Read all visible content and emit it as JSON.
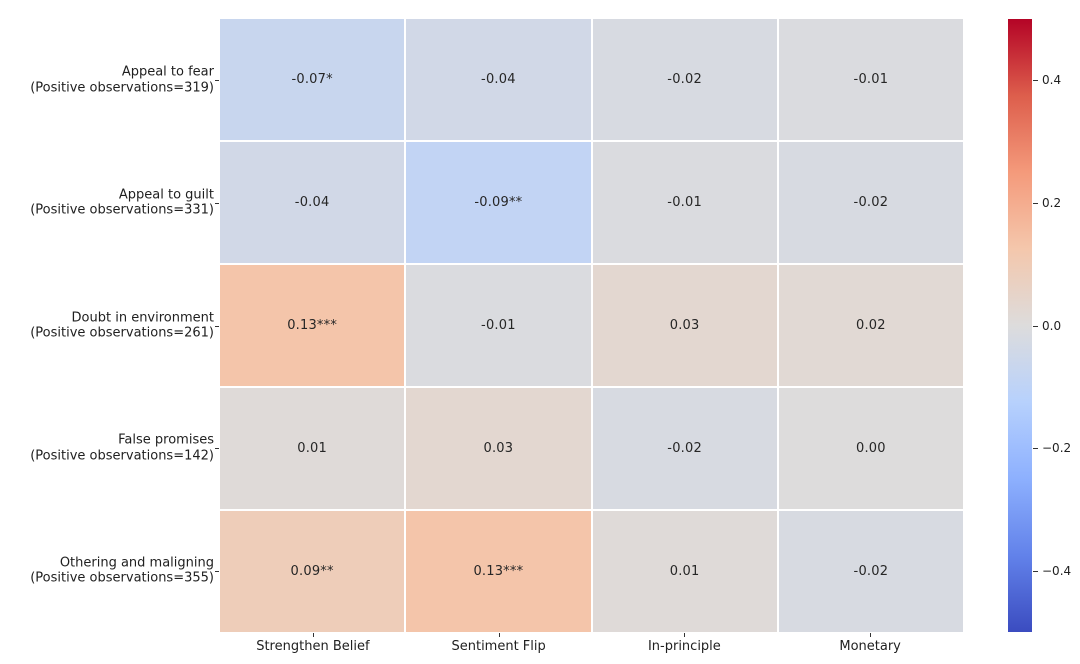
{
  "figure": {
    "background_color": "#ffffff"
  },
  "chart_data": {
    "type": "heatmap",
    "title": "",
    "colormap": "coolwarm",
    "vmin": -0.5,
    "vmax": 0.5,
    "grid_gap_color": "#ffffff",
    "annotation_text_color": "#262626",
    "axis_text_color": "#1f1f1f",
    "x_categories": [
      "Strengthen Belief",
      "Sentiment Flip",
      "In-principle",
      "Monetary"
    ],
    "y_categories": [
      {
        "label": "Appeal to fear",
        "sublabel": "(Positive observations=319)"
      },
      {
        "label": "Appeal to guilt",
        "sublabel": "(Positive observations=331)"
      },
      {
        "label": "Doubt in environment",
        "sublabel": "(Positive observations=261)"
      },
      {
        "label": "False promises",
        "sublabel": "(Positive observations=142)"
      },
      {
        "label": "Othering and maligning",
        "sublabel": "(Positive observations=355)"
      }
    ],
    "values": [
      [
        -0.07,
        -0.04,
        -0.02,
        -0.01
      ],
      [
        -0.04,
        -0.09,
        -0.01,
        -0.02
      ],
      [
        0.13,
        -0.01,
        0.03,
        0.02
      ],
      [
        0.01,
        0.03,
        -0.02,
        0.0
      ],
      [
        0.09,
        0.13,
        0.01,
        -0.02
      ]
    ],
    "cell_labels": [
      [
        "-0.07*",
        "-0.04",
        "-0.02",
        "-0.01"
      ],
      [
        "-0.04",
        "-0.09**",
        "-0.01",
        "-0.02"
      ],
      [
        "0.13***",
        "-0.01",
        "0.03",
        "0.02"
      ],
      [
        "0.01",
        "0.03",
        "-0.02",
        "0.00"
      ],
      [
        "0.09**",
        "0.13***",
        "0.01",
        "-0.02"
      ]
    ],
    "colorbar": {
      "position": "right",
      "ticks": [
        {
          "value": 0.4,
          "label": "0.4"
        },
        {
          "value": 0.2,
          "label": "0.2"
        },
        {
          "value": 0.0,
          "label": "0.0"
        },
        {
          "value": -0.2,
          "label": "−0.2"
        },
        {
          "value": -0.4,
          "label": "−0.4"
        }
      ],
      "colormap_anchors": [
        {
          "t": 0.0,
          "color": "#3b4cc0"
        },
        {
          "t": 0.125,
          "color": "#6282ea"
        },
        {
          "t": 0.25,
          "color": "#8db0fe"
        },
        {
          "t": 0.375,
          "color": "#b7d1fd"
        },
        {
          "t": 0.5,
          "color": "#dddcdc"
        },
        {
          "t": 0.625,
          "color": "#f4c7ac"
        },
        {
          "t": 0.75,
          "color": "#f49a7b"
        },
        {
          "t": 0.875,
          "color": "#dd5e4c"
        },
        {
          "t": 1.0,
          "color": "#b40426"
        }
      ]
    }
  }
}
